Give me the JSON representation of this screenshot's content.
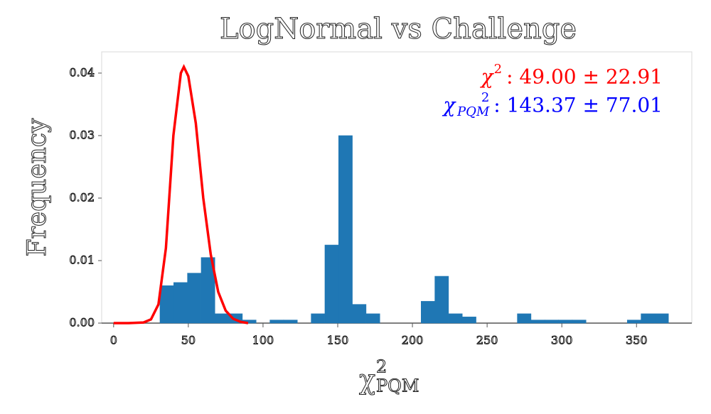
{
  "chart_data": {
    "type": "histogram",
    "title": "LogNormal vs Challenge",
    "ylabel": "Frequency",
    "xlabel": {
      "base": "χ",
      "sup": "2",
      "sub": "PQM"
    },
    "bins": [
      31,
      40.2,
      49.4,
      58.6,
      67.8,
      77,
      86.2,
      95.4,
      104.6,
      113.8,
      123,
      132.2,
      141.4,
      150.6,
      159.8,
      169,
      178.2,
      187.4,
      196.6,
      205.8,
      215,
      224.2,
      233.4,
      242.6,
      251.8,
      261,
      270.2,
      279.4,
      288.6,
      297.8,
      307,
      316.2,
      325.4,
      334.6,
      343.8,
      353,
      362.2,
      371.4
    ],
    "values": [
      0.006,
      0.0065,
      0.008,
      0.0105,
      0.0015,
      0.0015,
      0.0005,
      0,
      0.0005,
      0.0005,
      0,
      0.0015,
      0.0125,
      0.03,
      0.003,
      0.0015,
      0,
      0,
      0,
      0.0035,
      0.0075,
      0.0015,
      0.001,
      0,
      0,
      0,
      0.0015,
      0.0005,
      0.0005,
      0.0005,
      0.0005,
      0,
      0,
      0,
      0.0005,
      0.0015,
      0.0015
    ],
    "color": "#1f77b4",
    "curve": {
      "color": "#ff0000",
      "x": [
        0,
        10,
        20,
        25,
        30,
        35,
        40,
        45,
        47,
        50,
        55,
        60,
        65,
        70,
        75,
        80,
        85,
        90
      ],
      "y": [
        0,
        0,
        0.0001,
        0.0006,
        0.003,
        0.012,
        0.03,
        0.04,
        0.041,
        0.0395,
        0.032,
        0.02,
        0.011,
        0.005,
        0.002,
        0.0007,
        0.0002,
        0
      ]
    },
    "annotations": [
      {
        "base": "χ",
        "sup": "2",
        "text": ": 49.00 ± 22.91",
        "color": "#ff0000"
      },
      {
        "base": "χ",
        "sup": "2",
        "sub": "PQM",
        "text": ": 143.37 ± 77.01",
        "color": "#0000ff"
      }
    ],
    "xlim": [
      -8,
      387
    ],
    "ylim": [
      0,
      0.0434
    ],
    "xticks": [
      0,
      50,
      100,
      150,
      200,
      250,
      300,
      350
    ],
    "yticks": [
      {
        "value": 0,
        "label": "0.00"
      },
      {
        "value": 0.01,
        "label": "0.01"
      },
      {
        "value": 0.02,
        "label": "0.02"
      },
      {
        "value": 0.03,
        "label": "0.03"
      },
      {
        "value": 0.04,
        "label": "0.04"
      }
    ]
  }
}
